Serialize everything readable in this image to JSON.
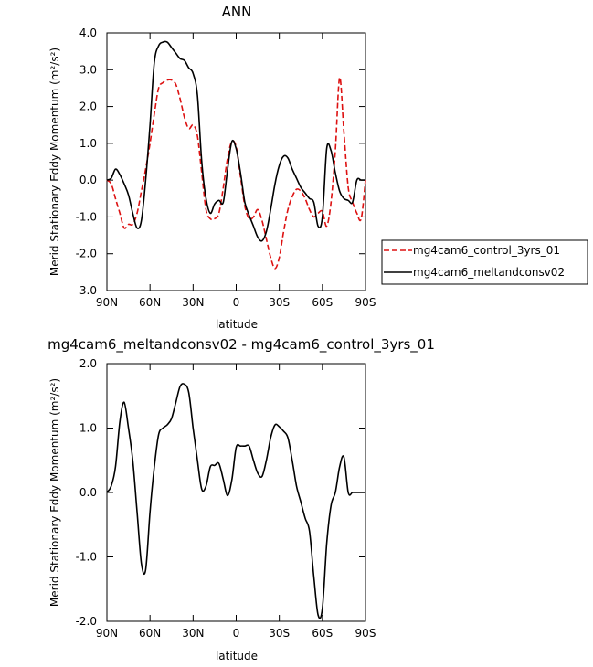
{
  "chart_data": [
    {
      "type": "line",
      "title": "ANN",
      "xlabel": "latitude",
      "ylabel": "Merid Stationary Eddy Momentum (m²/s²)",
      "xlim": [
        90,
        -90
      ],
      "ylim": [
        -3.0,
        4.0
      ],
      "x_ticks": [
        90,
        60,
        30,
        0,
        -30,
        -60,
        -90
      ],
      "x_tick_labels": [
        "90N",
        "60N",
        "30N",
        "0",
        "30S",
        "60S",
        "90S"
      ],
      "y_ticks": [
        -3.0,
        -2.0,
        -1.0,
        0.0,
        1.0,
        2.0,
        3.0,
        4.0
      ],
      "y_tick_labels": [
        "-3.0",
        "-2.0",
        "-1.0",
        "0.0",
        "1.0",
        "2.0",
        "3.0",
        "4.0"
      ],
      "legend_position": "right",
      "series": [
        {
          "name": "mg4cam6_control_3yrs_01",
          "color": "#dd1111",
          "dashed": true,
          "x": [
            90,
            87,
            84,
            81,
            78,
            75,
            72,
            69,
            66,
            63,
            60,
            57,
            54,
            51,
            48,
            45,
            42,
            39,
            36,
            33,
            30,
            27,
            24,
            21,
            18,
            15,
            12,
            9,
            6,
            3,
            0,
            -3,
            -6,
            -9,
            -12,
            -15,
            -18,
            -21,
            -24,
            -27,
            -30,
            -33,
            -36,
            -39,
            -42,
            -45,
            -48,
            -51,
            -54,
            -57,
            -60,
            -63,
            -66,
            -69,
            -72,
            -75,
            -78,
            -81,
            -84,
            -87,
            -90
          ],
          "y": [
            0.0,
            -0.1,
            -0.5,
            -0.9,
            -1.3,
            -1.2,
            -1.2,
            -0.9,
            -0.3,
            0.3,
            1.0,
            1.8,
            2.5,
            2.65,
            2.72,
            2.72,
            2.6,
            2.2,
            1.7,
            1.4,
            1.5,
            1.2,
            0.2,
            -0.8,
            -1.05,
            -1.05,
            -0.9,
            -0.2,
            0.6,
            1.05,
            0.9,
            0.1,
            -0.7,
            -1.05,
            -1.0,
            -0.8,
            -1.1,
            -1.6,
            -2.1,
            -2.4,
            -2.1,
            -1.4,
            -0.8,
            -0.45,
            -0.25,
            -0.3,
            -0.5,
            -0.8,
            -1.0,
            -0.9,
            -0.85,
            -1.25,
            -0.6,
            0.8,
            2.78,
            1.3,
            -0.2,
            -0.6,
            -0.9,
            -1.05,
            0.0
          ]
        },
        {
          "name": "mg4cam6_meltandconsv02",
          "color": "#000000",
          "dashed": false,
          "x": [
            90,
            87,
            84,
            81,
            78,
            75,
            72,
            69,
            66,
            63,
            60,
            57,
            54,
            51,
            48,
            45,
            42,
            39,
            36,
            33,
            30,
            27,
            24,
            21,
            18,
            15,
            12,
            9,
            6,
            3,
            0,
            -3,
            -6,
            -9,
            -12,
            -15,
            -18,
            -21,
            -24,
            -27,
            -30,
            -33,
            -36,
            -39,
            -42,
            -45,
            -48,
            -51,
            -54,
            -57,
            -60,
            -63,
            -66,
            -69,
            -72,
            -75,
            -78,
            -81,
            -84,
            -87,
            -90
          ],
          "y": [
            0.0,
            0.05,
            0.3,
            0.15,
            -0.1,
            -0.4,
            -0.9,
            -1.3,
            -1.1,
            0.0,
            1.5,
            3.2,
            3.65,
            3.75,
            3.75,
            3.6,
            3.45,
            3.3,
            3.25,
            3.05,
            2.9,
            2.3,
            0.5,
            -0.5,
            -0.9,
            -0.65,
            -0.55,
            -0.6,
            0.3,
            1.05,
            0.85,
            0.2,
            -0.6,
            -0.95,
            -1.25,
            -1.55,
            -1.65,
            -1.4,
            -0.8,
            -0.1,
            0.4,
            0.65,
            0.6,
            0.3,
            0.05,
            -0.2,
            -0.35,
            -0.5,
            -0.6,
            -1.25,
            -1.0,
            0.85,
            0.8,
            0.2,
            -0.3,
            -0.5,
            -0.55,
            -0.6,
            0.0,
            0.0,
            0.0
          ]
        }
      ]
    },
    {
      "type": "line",
      "title": "mg4cam6_meltandconsv02 - mg4cam6_control_3yrs_01",
      "xlabel": "latitude",
      "ylabel": "Merid Stationary Eddy Momentum (m²/s²)",
      "xlim": [
        90,
        -90
      ],
      "ylim": [
        -2.0,
        2.0
      ],
      "x_ticks": [
        90,
        60,
        30,
        0,
        -30,
        -60,
        -90
      ],
      "x_tick_labels": [
        "90N",
        "60N",
        "30N",
        "0",
        "30S",
        "60S",
        "90S"
      ],
      "y_ticks": [
        -2.0,
        -1.0,
        0.0,
        1.0,
        2.0
      ],
      "y_tick_labels": [
        "-2.0",
        "-1.0",
        "0.0",
        "1.0",
        "2.0"
      ],
      "series": [
        {
          "color": "#000000",
          "dashed": false,
          "x": [
            90,
            87,
            84,
            81,
            78,
            75,
            72,
            69,
            66,
            63,
            60,
            57,
            54,
            51,
            48,
            45,
            42,
            39,
            36,
            33,
            30,
            27,
            24,
            21,
            18,
            15,
            12,
            9,
            6,
            3,
            0,
            -3,
            -6,
            -9,
            -12,
            -15,
            -18,
            -21,
            -24,
            -27,
            -30,
            -33,
            -36,
            -39,
            -42,
            -45,
            -48,
            -51,
            -54,
            -57,
            -60,
            -63,
            -66,
            -69,
            -72,
            -75,
            -78,
            -81,
            -84,
            -87,
            -90
          ],
          "y": [
            0.0,
            0.1,
            0.4,
            1.1,
            1.4,
            1.0,
            0.5,
            -0.3,
            -1.1,
            -1.2,
            -0.3,
            0.4,
            0.9,
            1.0,
            1.05,
            1.15,
            1.4,
            1.65,
            1.68,
            1.55,
            1.0,
            0.5,
            0.05,
            0.1,
            0.4,
            0.42,
            0.45,
            0.2,
            -0.05,
            0.2,
            0.7,
            0.72,
            0.72,
            0.72,
            0.5,
            0.3,
            0.25,
            0.5,
            0.85,
            1.05,
            1.02,
            0.95,
            0.85,
            0.5,
            0.1,
            -0.15,
            -0.4,
            -0.6,
            -1.3,
            -1.9,
            -1.8,
            -0.8,
            -0.2,
            0.0,
            0.4,
            0.55,
            0.0,
            0.0,
            0.0,
            0.0,
            0.0
          ]
        }
      ]
    }
  ]
}
